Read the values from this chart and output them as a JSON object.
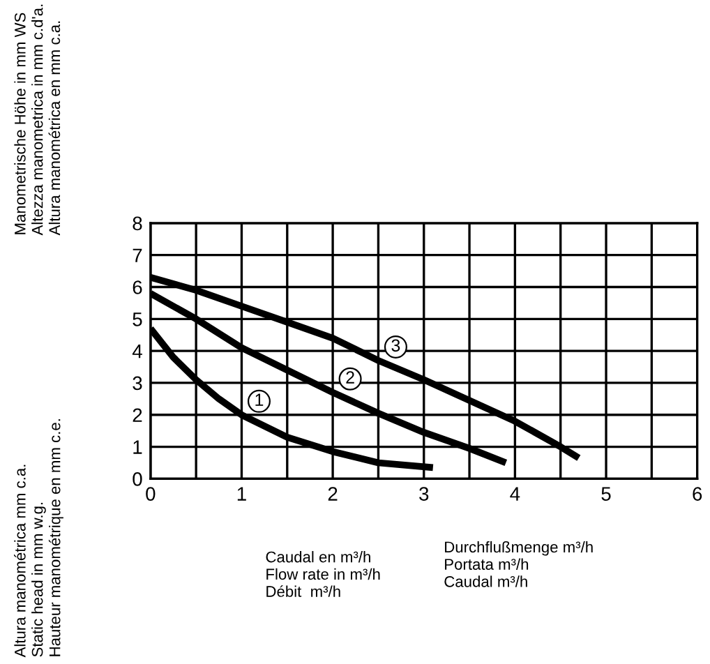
{
  "chart_data": {
    "type": "line",
    "xlim": [
      0,
      6
    ],
    "ylim": [
      0,
      8
    ],
    "xticks": [
      0,
      {
        "value": 0.5,
        "label": null
      },
      1,
      {
        "value": 1.5,
        "label": null
      },
      2,
      {
        "value": 2.5,
        "label": null
      },
      3,
      {
        "value": 3.5,
        "label": null
      },
      4,
      {
        "value": 4.5,
        "label": null
      },
      5,
      {
        "value": 5.5,
        "label": null
      },
      6
    ],
    "yticks": [
      0,
      1,
      2,
      3,
      4,
      5,
      6,
      7,
      8
    ],
    "grid": true,
    "legend": false,
    "marker": "none",
    "line_style": "solid",
    "xlabel": "Caudal en m³/h\nFlow rate in m³/h\nDébit  m³/h",
    "ylabel": "Manometrische Höhe in mm WS\nAltezza manometrica in mm c.d'a.\nAltura manométrica en mm c.a.",
    "annotations": [
      "Durchflußmenge m³/h\nPortata m³/h\nCaudal m³/h",
      "Altura manométrica mm c.a.\nStatic head in mm w.g.\nHauteur manométrique en mm c.e."
    ],
    "series": [
      {
        "name": "1",
        "color": "#000000",
        "x": [
          0,
          0.25,
          0.5,
          0.75,
          1,
          1.5,
          2,
          2.5,
          3.1
        ],
        "values": [
          4.7,
          3.8,
          3.1,
          2.5,
          2.0,
          1.3,
          0.85,
          0.5,
          0.35
        ]
      },
      {
        "name": "2",
        "color": "#000000",
        "x": [
          0,
          0.5,
          1,
          1.5,
          2,
          2.5,
          3,
          3.5,
          3.9
        ],
        "values": [
          5.8,
          5.0,
          4.1,
          3.4,
          2.7,
          2.05,
          1.45,
          0.95,
          0.5
        ]
      },
      {
        "name": "3",
        "color": "#000000",
        "x": [
          0,
          0.5,
          1,
          1.5,
          2,
          2.5,
          3,
          3.5,
          4,
          4.5,
          4.7
        ],
        "values": [
          6.3,
          5.9,
          5.4,
          4.9,
          4.4,
          3.7,
          3.1,
          2.45,
          1.8,
          1.0,
          0.65
        ]
      }
    ]
  }
}
